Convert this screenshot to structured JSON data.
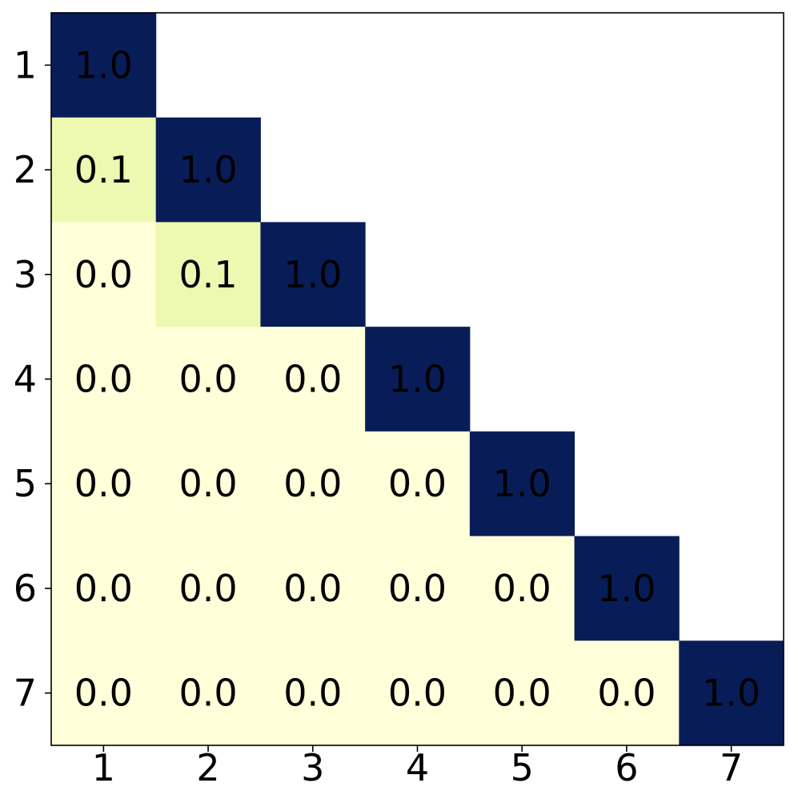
{
  "chart_data": {
    "type": "heatmap",
    "title": "",
    "xlabel": "",
    "ylabel": "",
    "x_categories": [
      "1",
      "2",
      "3",
      "4",
      "5",
      "6",
      "7"
    ],
    "y_categories": [
      "1",
      "2",
      "3",
      "4",
      "5",
      "6",
      "7"
    ],
    "values": [
      [
        1.0,
        null,
        null,
        null,
        null,
        null,
        null
      ],
      [
        0.1,
        1.0,
        null,
        null,
        null,
        null,
        null
      ],
      [
        0.0,
        0.1,
        1.0,
        null,
        null,
        null,
        null
      ],
      [
        0.0,
        0.0,
        0.0,
        1.0,
        null,
        null,
        null
      ],
      [
        0.0,
        0.0,
        0.0,
        0.0,
        1.0,
        null,
        null
      ],
      [
        0.0,
        0.0,
        0.0,
        0.0,
        0.0,
        1.0,
        null
      ],
      [
        0.0,
        0.0,
        0.0,
        0.0,
        0.0,
        0.0,
        1.0
      ]
    ],
    "cell_labels": [
      [
        "1.0",
        null,
        null,
        null,
        null,
        null,
        null
      ],
      [
        "0.1",
        "1.0",
        null,
        null,
        null,
        null,
        null
      ],
      [
        "0.0",
        "0.1",
        "1.0",
        null,
        null,
        null,
        null
      ],
      [
        "0.0",
        "0.0",
        "0.0",
        "1.0",
        null,
        null,
        null
      ],
      [
        "0.0",
        "0.0",
        "0.0",
        "0.0",
        "1.0",
        null,
        null
      ],
      [
        "0.0",
        "0.0",
        "0.0",
        "0.0",
        "0.0",
        "1.0",
        null
      ],
      [
        "0.0",
        "0.0",
        "0.0",
        "0.0",
        "0.0",
        "0.0",
        "1.0"
      ]
    ],
    "colormap": "YlGnBu",
    "colors": {
      "low": "#ffffd9",
      "mid": "#edf8b1",
      "high": "#081d58"
    },
    "grid": false,
    "legend": "none"
  }
}
